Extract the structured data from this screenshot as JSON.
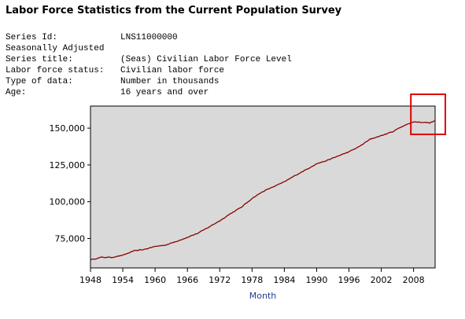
{
  "page": {
    "title": "Labor Force Statistics from the Current Population Survey"
  },
  "series_info": {
    "series_id_label": "Series Id:",
    "series_id": "LNS11000000",
    "adjustment": "Seasonally Adjusted",
    "series_title_label": "Series title:",
    "series_title": "(Seas) Civilian Labor Force Level",
    "status_label": "Labor force status:",
    "status": "Civilian labor force",
    "type_label": "Type of data:",
    "type": "Number in thousands",
    "age_label": "Age:",
    "age": "16 years and over"
  },
  "colors": {
    "plot_bg": "#d9d9d9",
    "line": "#8b0000",
    "highlight": "#e00000",
    "axis_title": "#1f3f8f"
  },
  "chart_data": {
    "type": "line",
    "title": "",
    "xlabel": "Month",
    "ylabel": "",
    "xlim": [
      1948,
      2012
    ],
    "ylim": [
      55000,
      165000
    ],
    "x_ticks": [
      "1948",
      "1954",
      "1960",
      "1966",
      "1972",
      "1978",
      "1984",
      "1990",
      "1996",
      "2002",
      "2008"
    ],
    "y_ticks": [
      "75,000",
      "100,000",
      "125,000",
      "150,000"
    ],
    "series": [
      {
        "x": [
          1948,
          1950,
          1952,
          1954,
          1956,
          1958,
          1960,
          1962,
          1964,
          1966,
          1968,
          1970,
          1972,
          1974,
          1976,
          1978,
          1980,
          1982,
          1984,
          1986,
          1988,
          1990,
          1992,
          1994,
          1996,
          1998,
          2000,
          2002,
          2004,
          2006,
          2008,
          2009,
          2010,
          2011,
          2012
        ],
        "y": [
          60500,
          62200,
          62200,
          63600,
          66500,
          67600,
          69600,
          70600,
          73100,
          75800,
          78700,
          82800,
          87000,
          91900,
          96200,
          102200,
          106900,
          110200,
          113500,
          117800,
          121700,
          125800,
          128100,
          131100,
          133900,
          137700,
          142600,
          144900,
          147400,
          151400,
          154300,
          154100,
          153900,
          153600,
          155000
        ]
      }
    ],
    "grid": false,
    "annotation": "red box highlighting 2008–2012 peak"
  }
}
